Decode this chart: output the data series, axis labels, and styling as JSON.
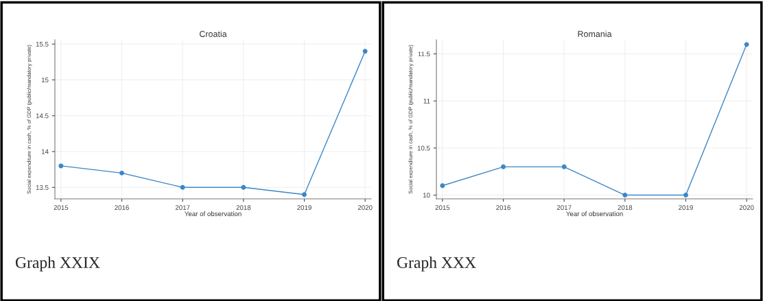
{
  "chart_data": [
    {
      "type": "line",
      "title": "Croatia",
      "xlabel": "Year of observation",
      "ylabel": "Social expenditure in cash, % of GDP (public/mandatory private)",
      "x": [
        2015,
        2016,
        2017,
        2018,
        2019,
        2020
      ],
      "series": [
        {
          "color": "#3a87c8",
          "values": [
            13.8,
            13.7,
            13.5,
            13.5,
            13.4,
            15.4
          ]
        }
      ],
      "xlim": [
        2014.9,
        2020.1
      ],
      "xticks": [
        2015,
        2016,
        2017,
        2018,
        2019,
        2020
      ],
      "ylim": [
        13.34,
        15.56
      ],
      "yticks": [
        13.5,
        14,
        14.5,
        15,
        15.5
      ],
      "grid": true,
      "marker": "circle",
      "line_style": "solid",
      "annotations": [
        "Graph XXIX"
      ]
    },
    {
      "type": "line",
      "title": "Romania",
      "xlabel": "Year of observation",
      "ylabel": "Social expenditure in cash, % of GDP (public/mandatory private)",
      "x": [
        2015,
        2016,
        2017,
        2018,
        2019,
        2020
      ],
      "series": [
        {
          "color": "#3a87c8",
          "values": [
            10.1,
            10.3,
            10.3,
            10.0,
            10.0,
            11.6
          ]
        }
      ],
      "xlim": [
        2014.9,
        2020.1
      ],
      "xticks": [
        2015,
        2016,
        2017,
        2018,
        2019,
        2020
      ],
      "ylim": [
        9.96,
        11.65
      ],
      "yticks": [
        10,
        10.5,
        11,
        11.5
      ],
      "grid": true,
      "marker": "circle",
      "line_style": "solid",
      "annotations": [
        "Graph XXX"
      ]
    }
  ]
}
